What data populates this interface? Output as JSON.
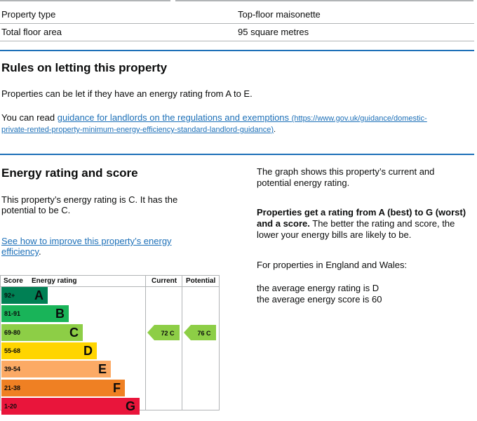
{
  "summary": {
    "rows": [
      {
        "label": "Property type",
        "value": "Top-floor maisonette"
      },
      {
        "label": "Total floor area",
        "value": "95 square metres"
      }
    ]
  },
  "letting": {
    "heading": "Rules on letting this property",
    "line1": "Properties can be let if they have an energy rating from A to E.",
    "line2_prefix": "You can read ",
    "link_text": "guidance for landlords on the regulations and exemptions",
    "url_line1": "(https://www.gov.uk/guidance/domestic-",
    "url_line2": "private-rented-property-minimum-energy-efficiency-standard-landlord-guidance)",
    "url_suffix": "."
  },
  "energy": {
    "heading": "Energy rating and score",
    "rating_line1": "This property’s energy rating is C. It has the",
    "rating_line2": "potential to be C.",
    "improve_line1": "See how to improve this property’s energy",
    "improve_line2": "efficiency",
    "improve_suffix": "."
  },
  "chart_data": {
    "type": "table",
    "headers": {
      "score": "Score",
      "rating": "Energy rating",
      "current": "Current",
      "potential": "Potential"
    },
    "bands": [
      {
        "range": "92+",
        "letter": "A",
        "color": "#008054"
      },
      {
        "range": "81-91",
        "letter": "B",
        "color": "#19b459"
      },
      {
        "range": "69-80",
        "letter": "C",
        "color": "#8dce46"
      },
      {
        "range": "55-68",
        "letter": "D",
        "color": "#ffd500"
      },
      {
        "range": "39-54",
        "letter": "E",
        "color": "#fcaa65"
      },
      {
        "range": "21-38",
        "letter": "F",
        "color": "#ef8023"
      },
      {
        "range": "1-20",
        "letter": "G",
        "color": "#e9153b"
      }
    ],
    "current": {
      "score": 72,
      "band": "C",
      "label": "72  C"
    },
    "potential": {
      "score": 76,
      "band": "C",
      "label": "76  C"
    }
  },
  "sidebar": {
    "graph_line1": "The graph shows this property’s current and",
    "graph_line2": "potential energy rating.",
    "bold_line1": "Properties get a rating from A (best) to G (worst)",
    "bold_line2a": "and a score.",
    "bold_line2b": " The better the rating and score, the",
    "line3": "lower your energy bills are likely to be.",
    "england": "For properties in England and Wales:",
    "avg_rating": "the average energy rating is D",
    "avg_score": "the average energy score is 60"
  }
}
